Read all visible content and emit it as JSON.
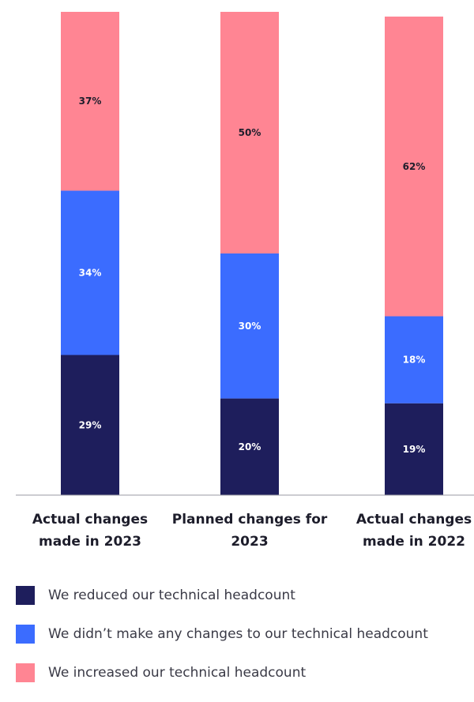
{
  "chart_data": {
    "type": "bar",
    "stacked": true,
    "normalized_percent": true,
    "categories": [
      [
        "Actual changes",
        "made in 2023"
      ],
      [
        "Planned changes for",
        "2023"
      ],
      [
        "Actual changes",
        "made in 2022"
      ]
    ],
    "series": [
      {
        "name": "We reduced our technical headcount",
        "color": "#1e1e5c",
        "label_color": "#ffffff",
        "values": [
          29,
          20,
          19
        ]
      },
      {
        "name": "We didn’t make any changes to our technical headcount",
        "color": "#3b6cff",
        "label_color": "#ffffff",
        "values": [
          34,
          30,
          18
        ]
      },
      {
        "name": "We increased our technical headcount",
        "color": "#ff8593",
        "label_color": "#1d1d2b",
        "values": [
          37,
          50,
          62
        ]
      }
    ],
    "value_suffix": "%",
    "legend_position": "bottom",
    "grid": false
  }
}
